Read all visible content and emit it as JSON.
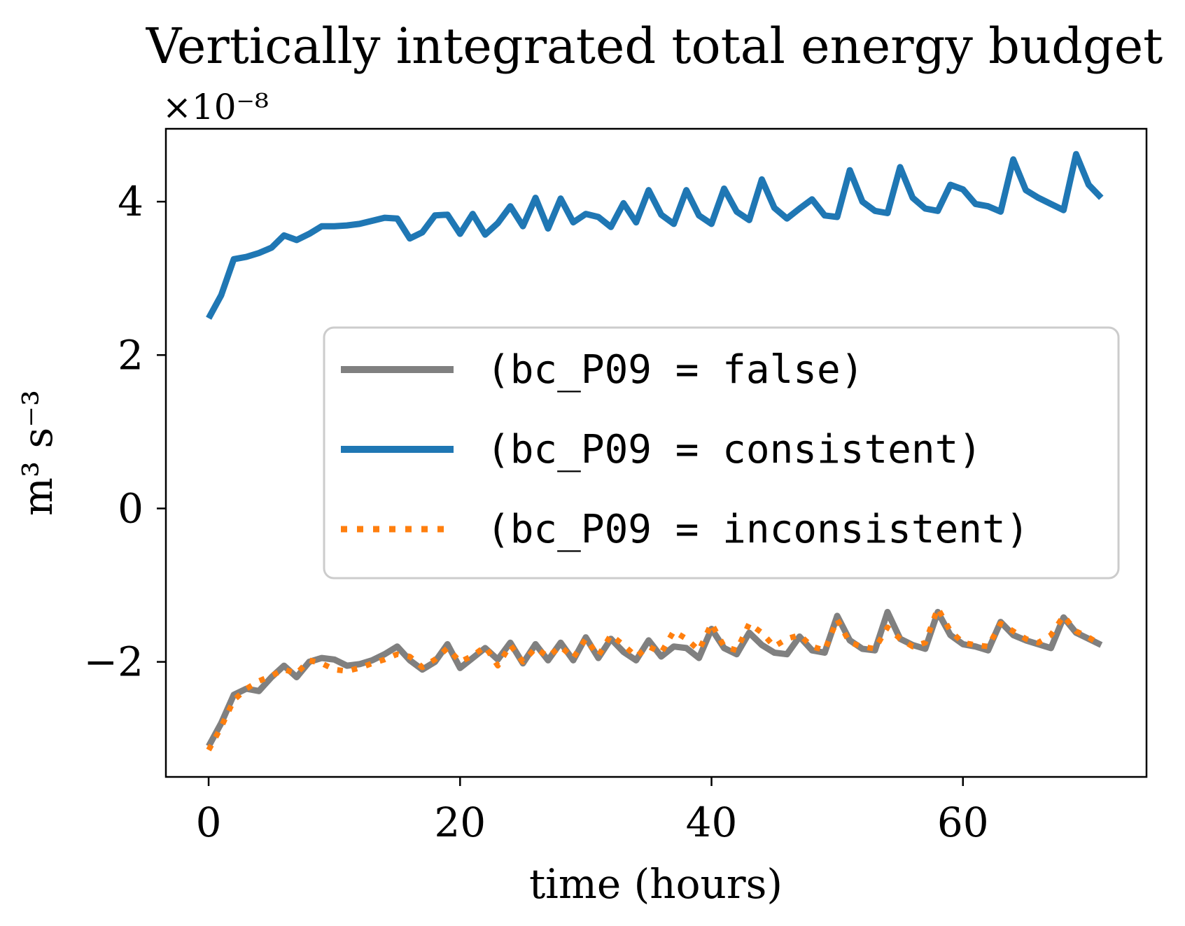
{
  "chart_data": {
    "type": "line",
    "title": "Vertically integrated total energy budget",
    "xlabel": "time (hours)",
    "ylabel": "m³ s⁻³",
    "y_multiplier": "×10⁻⁸",
    "xlim": [
      -3.4,
      74.6
    ],
    "ylim": [
      -3.5,
      4.95
    ],
    "xticks": [
      0,
      20,
      40,
      60
    ],
    "yticks": [
      -2,
      0,
      2,
      4
    ],
    "xtick_labels": [
      "0",
      "20",
      "40",
      "60"
    ],
    "ytick_labels": [
      "−2",
      "0",
      "2",
      "4"
    ],
    "grid": false,
    "legend_position": "center-right",
    "x": [
      0,
      1,
      2,
      3,
      4,
      5,
      6,
      7,
      8,
      9,
      10,
      11,
      12,
      13,
      14,
      15,
      16,
      17,
      18,
      19,
      20,
      21,
      22,
      23,
      24,
      25,
      26,
      27,
      28,
      29,
      30,
      31,
      32,
      33,
      34,
      35,
      36,
      37,
      38,
      39,
      40,
      41,
      42,
      43,
      44,
      45,
      46,
      47,
      48,
      49,
      50,
      51,
      52,
      53,
      54,
      55,
      56,
      57,
      58,
      59,
      60,
      61,
      62,
      63,
      64,
      65,
      66,
      67,
      68,
      69,
      70,
      71
    ],
    "series": [
      {
        "name": "(bc_P09 = false)",
        "color": "#808080",
        "style": "solid",
        "values": [
          -3.1,
          -2.8,
          -2.43,
          -2.35,
          -2.38,
          -2.2,
          -2.05,
          -2.2,
          -2.0,
          -1.95,
          -1.97,
          -2.05,
          -2.03,
          -1.98,
          -1.9,
          -1.8,
          -1.98,
          -2.1,
          -2.0,
          -1.77,
          -2.08,
          -1.95,
          -1.82,
          -1.97,
          -1.75,
          -2.02,
          -1.77,
          -1.98,
          -1.75,
          -1.98,
          -1.68,
          -1.95,
          -1.7,
          -1.87,
          -1.98,
          -1.72,
          -1.93,
          -1.8,
          -1.82,
          -1.95,
          -1.57,
          -1.82,
          -1.9,
          -1.62,
          -1.78,
          -1.88,
          -1.9,
          -1.67,
          -1.85,
          -1.88,
          -1.4,
          -1.72,
          -1.83,
          -1.85,
          -1.35,
          -1.7,
          -1.78,
          -1.83,
          -1.35,
          -1.65,
          -1.77,
          -1.8,
          -1.85,
          -1.48,
          -1.65,
          -1.72,
          -1.77,
          -1.82,
          -1.42,
          -1.62,
          -1.7,
          -1.78
        ]
      },
      {
        "name": "(bc_P09 = consistent)",
        "color": "#1f77b4",
        "style": "solid",
        "values": [
          2.48,
          2.78,
          3.25,
          3.28,
          3.33,
          3.4,
          3.56,
          3.5,
          3.58,
          3.68,
          3.68,
          3.69,
          3.71,
          3.75,
          3.79,
          3.78,
          3.52,
          3.6,
          3.82,
          3.83,
          3.58,
          3.84,
          3.57,
          3.72,
          3.94,
          3.68,
          4.05,
          3.65,
          4.04,
          3.73,
          3.84,
          3.8,
          3.67,
          3.98,
          3.73,
          4.15,
          3.83,
          3.71,
          4.15,
          3.82,
          3.71,
          4.17,
          3.87,
          3.76,
          4.29,
          3.92,
          3.78,
          3.91,
          4.03,
          3.82,
          3.8,
          4.41,
          4.0,
          3.88,
          3.85,
          4.45,
          4.05,
          3.91,
          3.88,
          4.22,
          4.16,
          3.97,
          3.94,
          3.87,
          4.55,
          4.15,
          4.05,
          3.97,
          3.89,
          4.62,
          4.22,
          4.05
        ]
      },
      {
        "name": "(bc_P09 = inconsistent)",
        "color": "#ff7f0e",
        "style": "dotted",
        "values": [
          -3.15,
          -2.85,
          -2.5,
          -2.35,
          -2.25,
          -2.18,
          -2.1,
          -2.15,
          -1.98,
          -2.02,
          -2.1,
          -2.12,
          -2.08,
          -2.02,
          -1.97,
          -1.9,
          -1.93,
          -2.07,
          -1.97,
          -1.82,
          -2.0,
          -1.92,
          -1.8,
          -2.05,
          -1.78,
          -2.0,
          -1.82,
          -1.93,
          -1.8,
          -1.95,
          -1.7,
          -1.92,
          -1.65,
          -1.78,
          -1.93,
          -1.8,
          -1.88,
          -1.6,
          -1.7,
          -1.85,
          -1.5,
          -1.8,
          -1.85,
          -1.5,
          -1.62,
          -1.8,
          -1.7,
          -1.65,
          -1.8,
          -1.85,
          -1.45,
          -1.75,
          -1.8,
          -1.83,
          -1.55,
          -1.7,
          -1.8,
          -1.75,
          -1.3,
          -1.6,
          -1.75,
          -1.78,
          -1.8,
          -1.5,
          -1.6,
          -1.7,
          -1.75,
          -1.65,
          -1.4,
          -1.6,
          -1.68,
          -1.78
        ]
      }
    ]
  }
}
